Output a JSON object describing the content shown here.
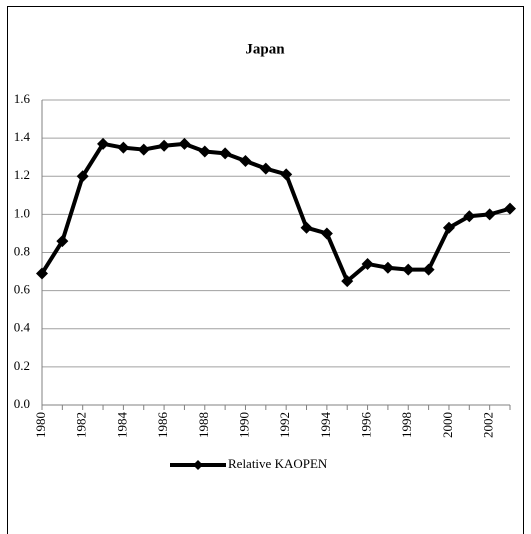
{
  "chart_data": {
    "type": "line",
    "title": "Japan",
    "categories": [
      "1980",
      null,
      "1982",
      null,
      "1984",
      null,
      "1986",
      null,
      "1988",
      null,
      "1990",
      null,
      "1992",
      null,
      "1994",
      null,
      "1996",
      null,
      "1998",
      null,
      "2000",
      null,
      "2002",
      null
    ],
    "series": [
      {
        "name": "Relative KAOPEN",
        "color": "#000000",
        "values": [
          0.69,
          0.86,
          1.2,
          1.37,
          1.35,
          1.34,
          1.36,
          1.37,
          1.33,
          1.32,
          1.28,
          1.24,
          1.21,
          0.93,
          0.9,
          0.65,
          0.74,
          0.72,
          0.71,
          0.71,
          0.93,
          0.99,
          1.0,
          1.03
        ]
      }
    ],
    "ylim": [
      0,
      1.6
    ],
    "yticks": [
      {
        "value": 0,
        "label": "0.0"
      },
      0.2,
      0.4,
      0.6,
      0.8,
      {
        "value": 1,
        "label": "1.0"
      },
      1.2,
      1.4,
      1.6
    ],
    "grid": true,
    "legend": "bottom"
  }
}
